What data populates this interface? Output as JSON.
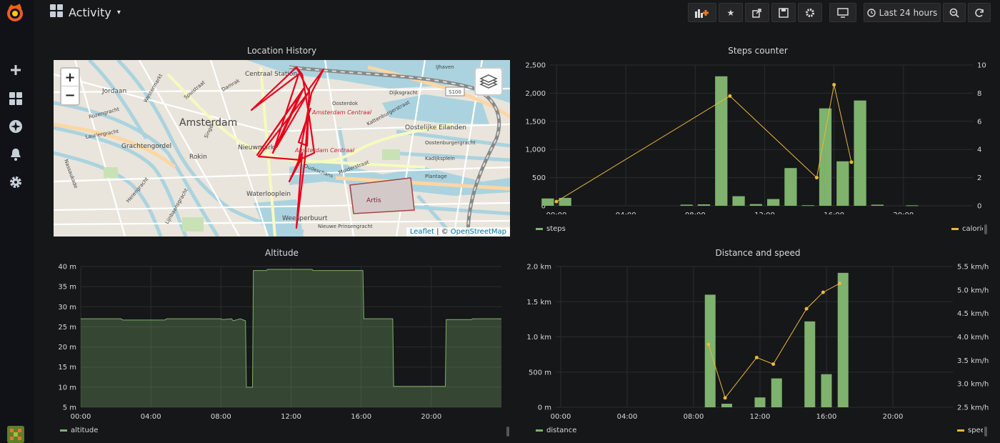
{
  "sidebar": {
    "items": [
      {
        "icon": "plus-icon"
      },
      {
        "icon": "dashboards-icon"
      },
      {
        "icon": "explore-compass-icon"
      },
      {
        "icon": "alerting-bell-icon"
      },
      {
        "icon": "gear-icon"
      }
    ]
  },
  "header": {
    "title": "Activity",
    "time_range": "Last 24 hours"
  },
  "colors": {
    "green": "#7eb26d",
    "yellow": "#eab839",
    "route": "#e8001a"
  },
  "map_panel": {
    "title": "Location History",
    "zoom_in": "+",
    "zoom_out": "−",
    "attrib_leaflet": "Leaflet",
    "attrib_sep": " | © ",
    "attrib_osm": "OpenStreetMap",
    "labels": [
      "Centraal Station",
      "Amsterdam",
      "Jordaan",
      "Grachtengordel",
      "Rokin",
      "Nieuwmarkt",
      "Waterlooplein",
      "Weesperbuurt",
      "Artis",
      "Oostelijke Eilanden",
      "Amsterdam Centraal",
      "Amsterdam Centraal",
      "S100",
      "Kattenburgerstraat",
      "IJhaven",
      "Oosterdok",
      "Dijksgracht",
      "Damrak",
      "Spuistraat",
      "Rozengracht",
      "Nassaukade",
      "Lauriergracht",
      "Oudeschans",
      "Muiderstraat",
      "Nieuwe Prinsengracht",
      "Plantage",
      "Oostenburgergracht",
      "Kadijksplein",
      "Lijnbaansgracht",
      "Westermarkt",
      "Singel",
      "Herengracht"
    ]
  },
  "steps_panel": {
    "title": "Steps counter",
    "y_left_ticks": [
      "0",
      "500",
      "1,000",
      "1,500",
      "2,000",
      "2,500"
    ],
    "y_right_ticks": [
      "0",
      "2",
      "4",
      "6",
      "8",
      "10"
    ],
    "x_ticks": [
      "00:00",
      "04:00",
      "08:00",
      "12:00",
      "16:00",
      "20:00"
    ],
    "legend_left": "steps",
    "legend_right": "calorie"
  },
  "altitude_panel": {
    "title": "Altitude",
    "y_ticks": [
      "5 m",
      "10 m",
      "15 m",
      "20 m",
      "25 m",
      "30 m",
      "35 m",
      "40 m"
    ],
    "x_ticks": [
      "00:00",
      "04:00",
      "08:00",
      "12:00",
      "16:00",
      "20:00"
    ],
    "legend": "altitude"
  },
  "distance_panel": {
    "title": "Distance and speed",
    "y_left_ticks": [
      "0 m",
      "500 m",
      "1.0 km",
      "1.5 km",
      "2.0 km"
    ],
    "y_right_ticks": [
      "2.5 km/h",
      "3.0 km/h",
      "3.5 km/h",
      "4.0 km/h",
      "4.5 km/h",
      "5.0 km/h",
      "5.5 km/h"
    ],
    "x_ticks": [
      "00:00",
      "04:00",
      "08:00",
      "12:00",
      "16:00",
      "20:00"
    ],
    "legend_left": "distance",
    "legend_right": "speed"
  },
  "chart_data": [
    {
      "type": "bar",
      "title": "Steps counter",
      "x_unit": "hour",
      "xlim": [
        0,
        24
      ],
      "ylim_left": [
        0,
        2500
      ],
      "ylim_right": [
        0,
        10
      ],
      "series": [
        {
          "name": "steps",
          "axis": "left",
          "type": "bar",
          "x": [
            -0.5,
            0.5,
            7.5,
            8.5,
            9.5,
            10.5,
            11.5,
            12.5,
            13.5,
            14.5,
            15.5,
            16.5,
            17.5,
            18.5,
            20.5
          ],
          "values": [
            130,
            140,
            20,
            25,
            2300,
            170,
            30,
            120,
            670,
            10,
            1730,
            790,
            1870,
            20,
            8
          ]
        },
        {
          "name": "calorie",
          "axis": "right",
          "type": "line",
          "x": [
            0,
            10,
            15,
            16,
            17
          ],
          "values": [
            0.3,
            7.8,
            2.0,
            8.6,
            3.1
          ]
        }
      ]
    },
    {
      "type": "area",
      "title": "Altitude",
      "x_unit": "hour",
      "xlim": [
        0,
        24
      ],
      "ylim": [
        5,
        40
      ],
      "series": [
        {
          "name": "altitude",
          "x": [
            0,
            2.3,
            2.4,
            4.8,
            4.9,
            8.0,
            8.1,
            8.6,
            8.7,
            9.1,
            9.4,
            9.45,
            9.8,
            9.85,
            10.6,
            10.65,
            13.2,
            13.25,
            16.1,
            16.15,
            17.8,
            17.85,
            20.8,
            20.85,
            22.3,
            22.35,
            24
          ],
          "values": [
            27,
            27,
            26.7,
            26.7,
            27,
            27,
            26.8,
            27,
            26.5,
            27,
            26.5,
            10,
            10,
            39,
            39,
            39.3,
            39.3,
            39,
            39,
            27,
            27,
            10.2,
            10.2,
            26.8,
            26.8,
            27,
            27
          ]
        }
      ]
    },
    {
      "type": "bar",
      "title": "Distance and speed",
      "x_unit": "hour",
      "xlim": [
        0,
        22.8
      ],
      "ylim_left": [
        0,
        2000
      ],
      "ylim_right": [
        2.5,
        5.5
      ],
      "series": [
        {
          "name": "distance",
          "axis": "left",
          "type": "bar",
          "x": [
            9.0,
            10.0,
            12.0,
            13.0,
            15.0,
            16.0,
            17.0
          ],
          "values": [
            1600,
            50,
            140,
            410,
            1220,
            470,
            1910
          ]
        },
        {
          "name": "speed",
          "axis": "right",
          "type": "line",
          "x": [
            8.9,
            9.9,
            11.8,
            12.8,
            14.8,
            15.8,
            16.8
          ],
          "values": [
            3.84,
            2.7,
            3.56,
            3.42,
            4.6,
            4.95,
            5.14
          ]
        }
      ]
    }
  ]
}
